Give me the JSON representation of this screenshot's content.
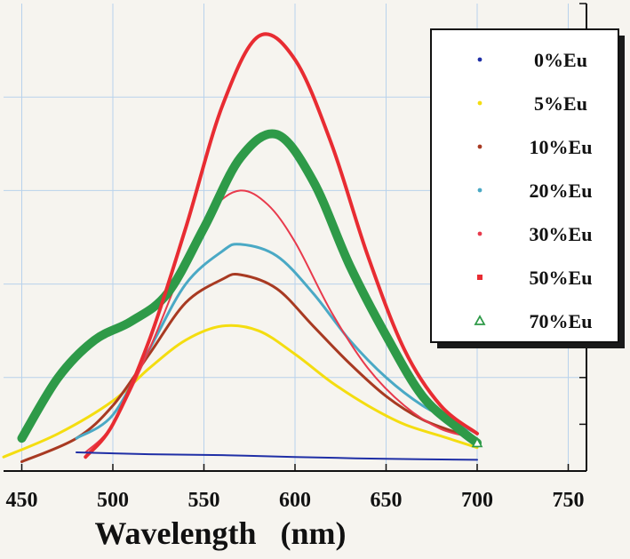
{
  "chart_data": {
    "type": "line",
    "title": "",
    "xlabel": "Wavelength   (nm)",
    "ylabel": "",
    "xlim": [
      440,
      760
    ],
    "ylim": [
      0,
      1
    ],
    "x_ticks": [
      450,
      500,
      550,
      600,
      650,
      700,
      750
    ],
    "grid": true,
    "legend_position": "top-right",
    "colors": {
      "background": "#f6f4ef",
      "grid": "#b8d2ec",
      "axis": "#111111"
    },
    "series": [
      {
        "name": "0%Eu",
        "color": "#1f2fa6",
        "marker": "dot",
        "width": 2,
        "points": [
          [
            480,
            0.04
          ],
          [
            520,
            0.036
          ],
          [
            560,
            0.034
          ],
          [
            600,
            0.03
          ],
          [
            650,
            0.026
          ],
          [
            700,
            0.024
          ]
        ]
      },
      {
        "name": "5%Eu",
        "color": "#f4dd10",
        "marker": "dot",
        "width": 3,
        "points": [
          [
            440,
            0.03
          ],
          [
            470,
            0.08
          ],
          [
            500,
            0.15
          ],
          [
            520,
            0.22
          ],
          [
            540,
            0.28
          ],
          [
            560,
            0.31
          ],
          [
            580,
            0.3
          ],
          [
            600,
            0.25
          ],
          [
            620,
            0.19
          ],
          [
            640,
            0.14
          ],
          [
            660,
            0.1
          ],
          [
            680,
            0.075
          ],
          [
            700,
            0.05
          ]
        ]
      },
      {
        "name": "10%Eu",
        "color": "#a83a22",
        "marker": "dot",
        "width": 3,
        "points": [
          [
            450,
            0.02
          ],
          [
            480,
            0.07
          ],
          [
            500,
            0.14
          ],
          [
            520,
            0.25
          ],
          [
            540,
            0.36
          ],
          [
            560,
            0.41
          ],
          [
            570,
            0.42
          ],
          [
            590,
            0.39
          ],
          [
            610,
            0.31
          ],
          [
            630,
            0.23
          ],
          [
            650,
            0.16
          ],
          [
            670,
            0.11
          ],
          [
            690,
            0.08
          ],
          [
            700,
            0.06
          ]
        ]
      },
      {
        "name": "20%Eu",
        "color": "#4aa9c5",
        "marker": "dot",
        "width": 3,
        "points": [
          [
            480,
            0.07
          ],
          [
            500,
            0.12
          ],
          [
            520,
            0.26
          ],
          [
            540,
            0.4
          ],
          [
            560,
            0.47
          ],
          [
            570,
            0.485
          ],
          [
            590,
            0.46
          ],
          [
            610,
            0.38
          ],
          [
            630,
            0.28
          ],
          [
            650,
            0.2
          ],
          [
            670,
            0.14
          ],
          [
            690,
            0.1
          ],
          [
            700,
            0.08
          ]
        ]
      },
      {
        "name": "30%Eu",
        "color": "#e83a4c",
        "marker": "dot",
        "width": 2,
        "points": [
          [
            485,
            0.04
          ],
          [
            500,
            0.1
          ],
          [
            520,
            0.26
          ],
          [
            540,
            0.45
          ],
          [
            555,
            0.56
          ],
          [
            570,
            0.6
          ],
          [
            585,
            0.57
          ],
          [
            600,
            0.49
          ],
          [
            620,
            0.34
          ],
          [
            640,
            0.22
          ],
          [
            660,
            0.14
          ],
          [
            680,
            0.09
          ],
          [
            700,
            0.07
          ]
        ]
      },
      {
        "name": "50%Eu",
        "color": "#e82c32",
        "marker": "square",
        "width": 4,
        "points": [
          [
            485,
            0.03
          ],
          [
            500,
            0.1
          ],
          [
            520,
            0.28
          ],
          [
            540,
            0.52
          ],
          [
            560,
            0.78
          ],
          [
            580,
            0.93
          ],
          [
            600,
            0.88
          ],
          [
            620,
            0.7
          ],
          [
            640,
            0.46
          ],
          [
            660,
            0.26
          ],
          [
            680,
            0.14
          ],
          [
            700,
            0.08
          ]
        ]
      },
      {
        "name": "70%Eu",
        "color": "#2e9a48",
        "marker": "triangle",
        "width": 10,
        "points": [
          [
            450,
            0.07
          ],
          [
            470,
            0.2
          ],
          [
            490,
            0.28
          ],
          [
            510,
            0.32
          ],
          [
            530,
            0.38
          ],
          [
            550,
            0.52
          ],
          [
            570,
            0.67
          ],
          [
            590,
            0.72
          ],
          [
            610,
            0.62
          ],
          [
            630,
            0.44
          ],
          [
            650,
            0.29
          ],
          [
            670,
            0.16
          ],
          [
            690,
            0.09
          ],
          [
            700,
            0.06
          ]
        ]
      }
    ]
  }
}
